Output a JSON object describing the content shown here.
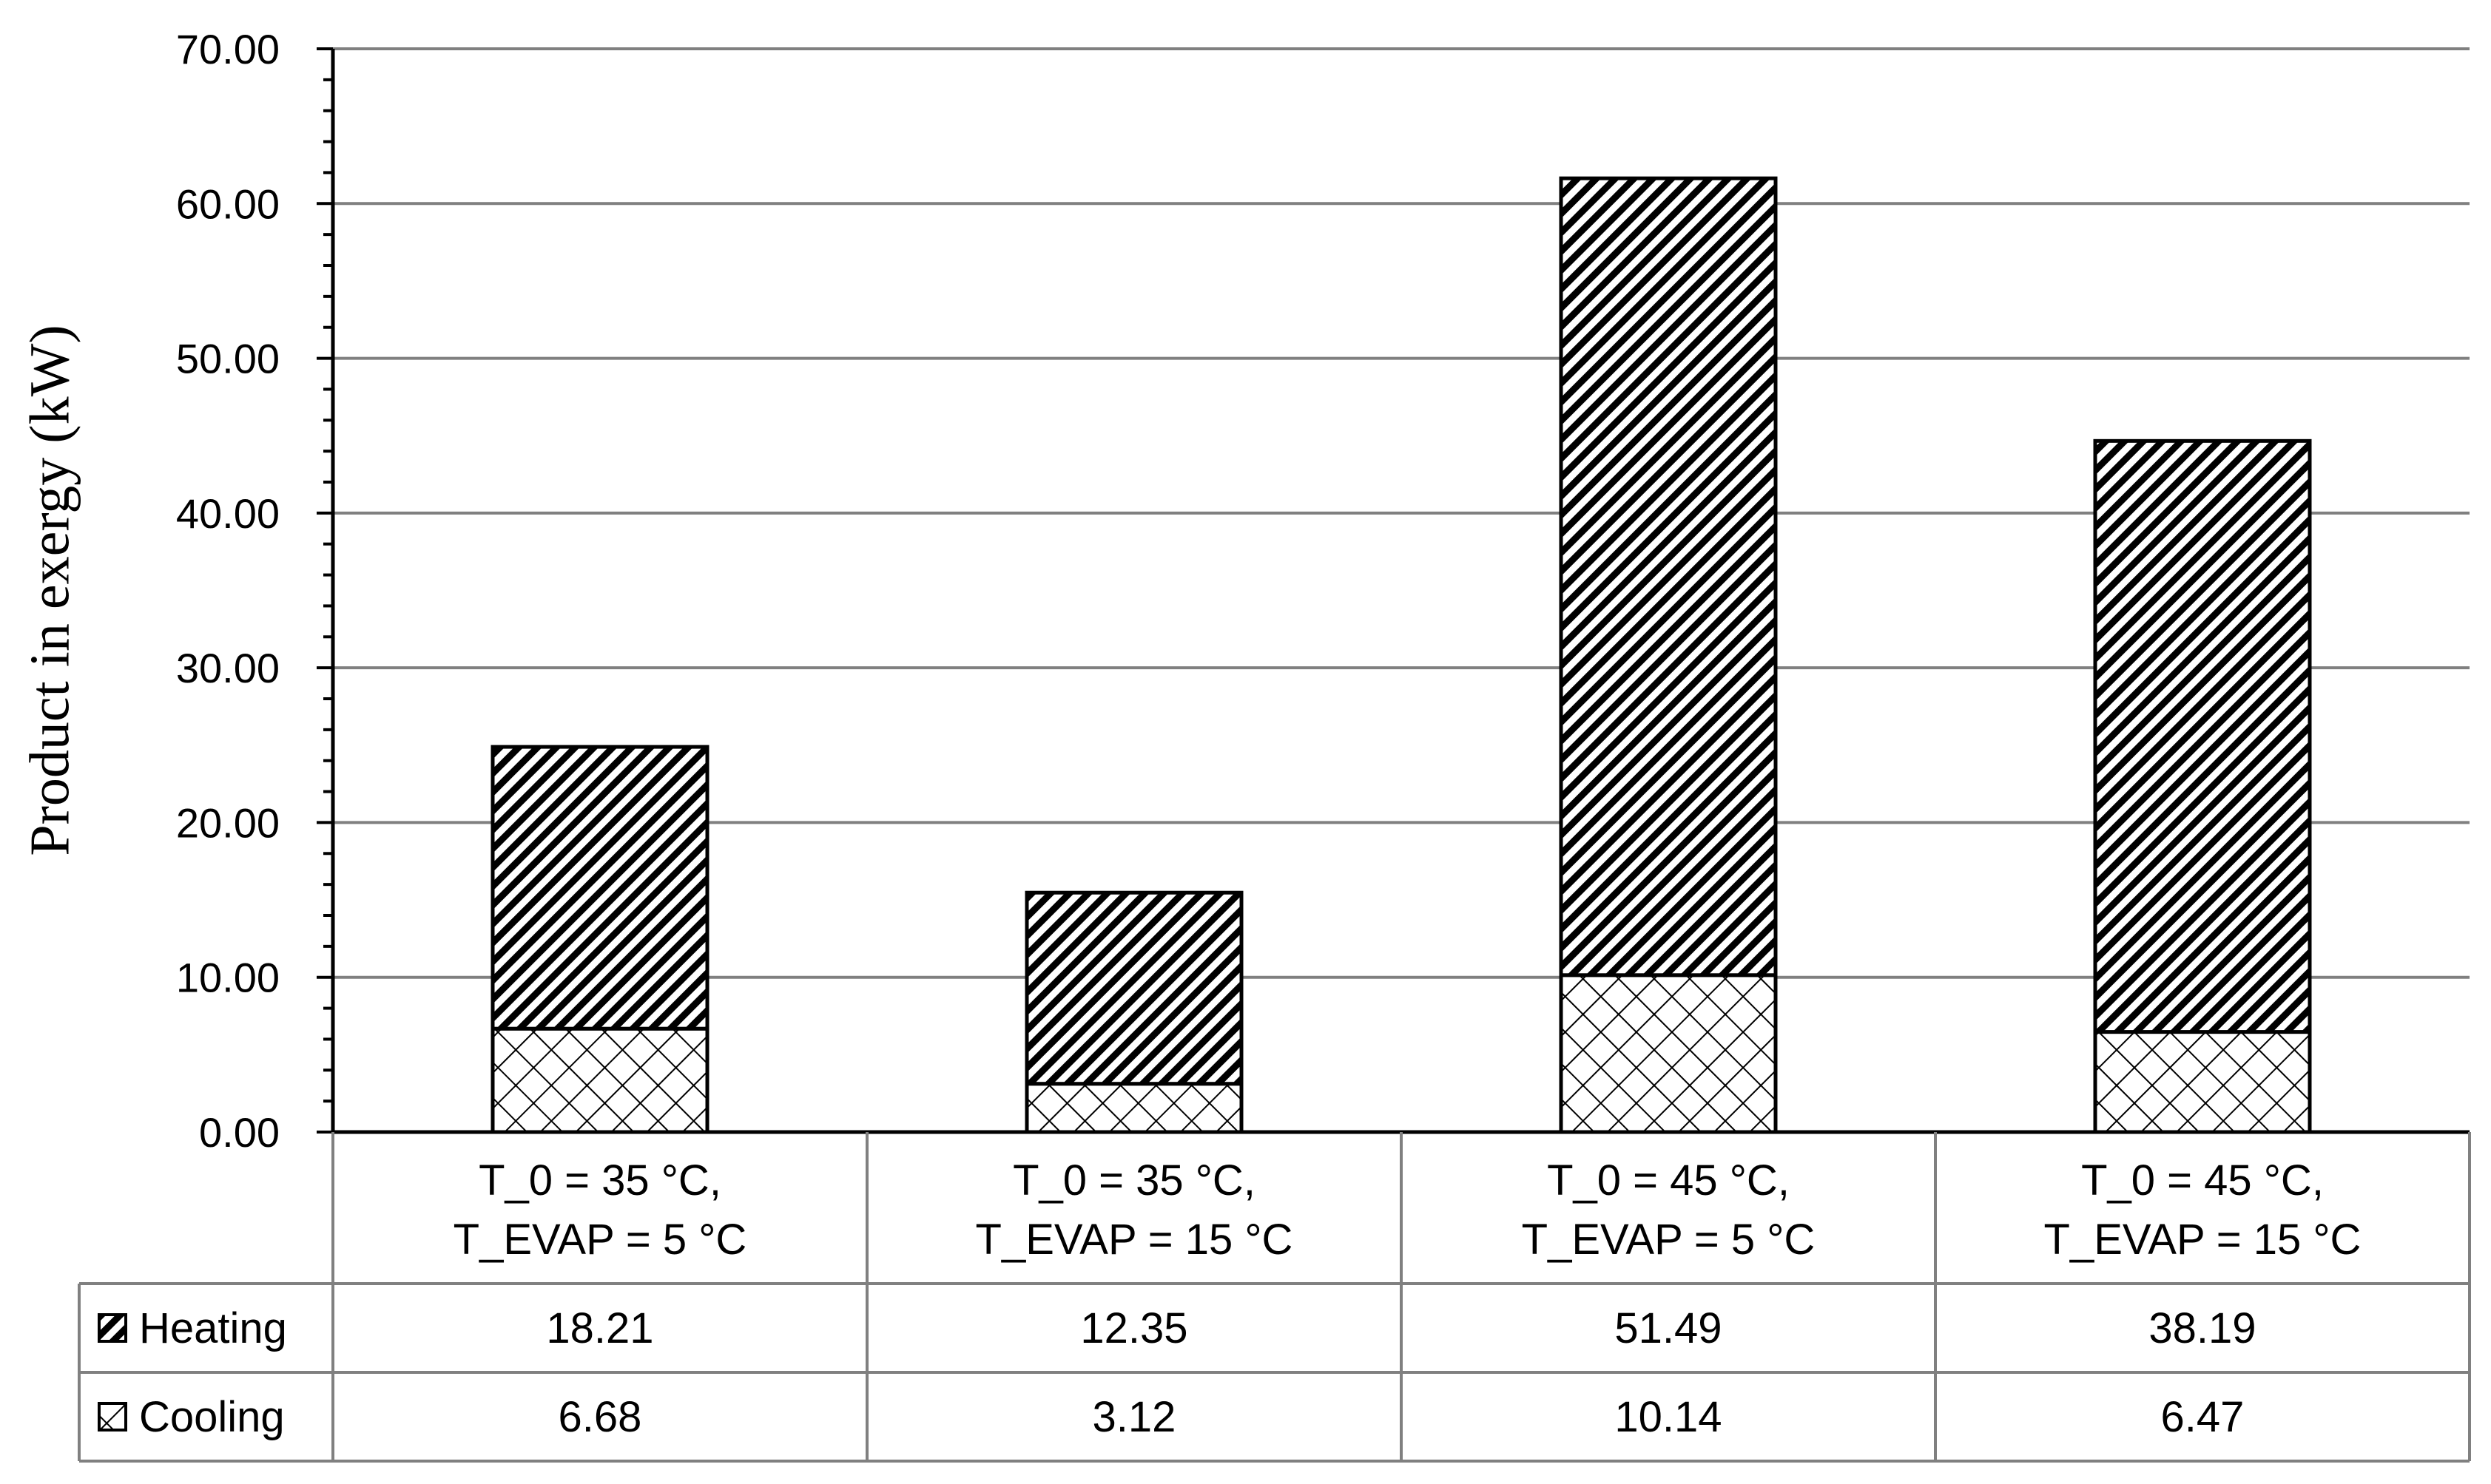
{
  "chart_data": {
    "type": "bar",
    "stacked": true,
    "title": "",
    "xlabel": "",
    "ylabel": "Product in exergy (kW)",
    "ylim": [
      0,
      70
    ],
    "yticks": [
      "0.00",
      "10.00",
      "20.00",
      "30.00",
      "40.00",
      "50.00",
      "60.00",
      "70.00"
    ],
    "grid": true,
    "legend": "data table rows",
    "categories": [
      [
        "T_0 = 35 °C,",
        "T_EVAP = 5 °C"
      ],
      [
        "T_0 = 35 °C,",
        "T_EVAP = 15 °C"
      ],
      [
        "T_0 = 45 °C,",
        "T_EVAP = 5 °C"
      ],
      [
        "T_0 = 45 °C,",
        "T_EVAP = 15 °C"
      ]
    ],
    "series": [
      {
        "name": "Cooling",
        "pattern": "crosshatch",
        "values": [
          6.68,
          3.12,
          10.14,
          6.47
        ],
        "labels": [
          "6.68",
          "3.12",
          "10.14",
          "6.47"
        ]
      },
      {
        "name": "Heating",
        "pattern": "diagonal",
        "values": [
          18.21,
          12.35,
          51.49,
          38.19
        ],
        "labels": [
          "18.21",
          "12.35",
          "51.49",
          "38.19"
        ]
      }
    ],
    "table_row_order": [
      "Heating",
      "Cooling"
    ],
    "colors": {
      "stroke": "#000000",
      "grid": "#808080",
      "fill": "#ffffff"
    }
  }
}
